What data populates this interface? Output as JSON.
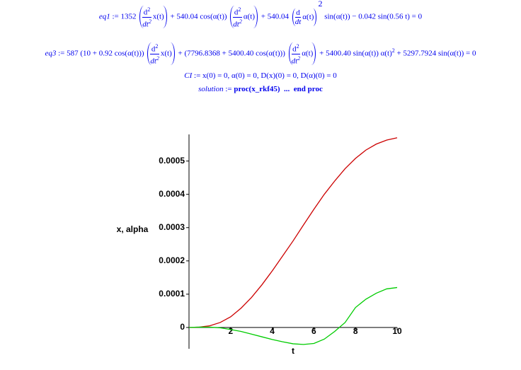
{
  "equations": [
    {
      "parts": [
        "eq1",
        ":= 1352",
        "d",
        "2",
        "dt",
        "2",
        "x(t)",
        "+ 540.04 cos(α(t))",
        "d",
        "2",
        "dt",
        "2",
        "α(t)",
        "+ 540.04",
        "d",
        "dt",
        "α(t)",
        "2",
        "sin(α(t)) − 0.042 sin(0.56 t) = 0"
      ]
    },
    {
      "parts": [
        "eq3",
        ":= 587 (10 + 0.92 cos(α(t)))",
        "d",
        "2",
        "dt",
        "2",
        "x(t)",
        "+ (7796.8368 + 5400.40 cos(α(t)))",
        "d",
        "2",
        "dt",
        "2",
        "α(t)",
        "+ 5400.40 sin(α(t)) α(t)",
        "2",
        "+ 5297.7924 sin(α(t)) = 0"
      ]
    },
    {
      "parts": [
        "CI",
        ":= x(0) = 0, α(0) = 0, D(x)(0) = 0, D(α)(0) = 0"
      ]
    },
    {
      "parts": [
        "solution",
        ":=",
        "proc(x_rkf45)",
        "...",
        "end proc"
      ]
    }
  ],
  "chart_data": {
    "type": "line",
    "x_label": "t",
    "y_label": "x, alpha",
    "x": [
      0,
      0.5,
      1,
      1.5,
      2,
      2.5,
      3,
      3.5,
      4,
      4.5,
      5,
      5.5,
      6,
      6.5,
      7,
      7.5,
      8,
      8.5,
      9,
      9.5,
      10
    ],
    "series": [
      {
        "color": "#cc0000",
        "values": [
          0,
          1e-06,
          5e-06,
          1.5e-05,
          3.2e-05,
          5.8e-05,
          9e-05,
          0.000128,
          0.00017,
          0.000215,
          0.00026,
          0.000308,
          0.000355,
          0.0004,
          0.00044,
          0.000477,
          0.000508,
          0.000533,
          0.000551,
          0.000563,
          0.00057
        ]
      },
      {
        "color": "#00cc00",
        "values": [
          0,
          1e-06,
          1e-06,
          -1e-06,
          -6e-06,
          -1.2e-05,
          -2e-05,
          -2.8e-05,
          -3.6e-05,
          -4.3e-05,
          -4.9e-05,
          -5.1e-05,
          -4.8e-05,
          -3.5e-05,
          -1.2e-05,
          1.5e-05,
          6e-05,
          8.5e-05,
          0.000103,
          0.000116,
          0.00012
        ]
      }
    ],
    "xlim": [
      0,
      10
    ],
    "ylim": [
      -6.4e-05,
      0.00058
    ],
    "xticks": [
      2,
      4,
      6,
      8,
      10
    ],
    "yticks": [
      0,
      0.0001,
      0.0002,
      0.0003,
      0.0004,
      0.0005
    ]
  }
}
